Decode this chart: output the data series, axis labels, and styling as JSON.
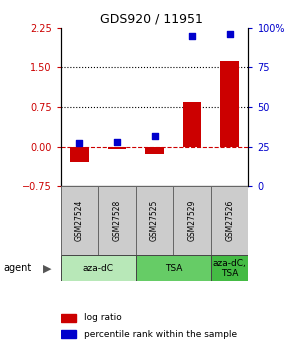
{
  "title": "GDS920 / 11951",
  "samples": [
    "GSM27524",
    "GSM27528",
    "GSM27525",
    "GSM27529",
    "GSM27526"
  ],
  "log_ratios": [
    -0.3,
    -0.05,
    -0.13,
    0.85,
    1.62
  ],
  "percentile_ranks": [
    27,
    28,
    32,
    95,
    96
  ],
  "ylim_left": [
    -0.75,
    2.25
  ],
  "ylim_right": [
    0,
    100
  ],
  "yticks_left": [
    -0.75,
    0,
    0.75,
    1.5,
    2.25
  ],
  "yticks_right": [
    0,
    25,
    50,
    75,
    100
  ],
  "bar_color": "#CC0000",
  "dot_color": "#0000CC",
  "bar_width": 0.5,
  "dot_size": 25,
  "cell_bg": "#cccccc",
  "agent_groups": [
    {
      "label": "aza-dC",
      "start": 0,
      "end": 2,
      "color": "#b8e8b8"
    },
    {
      "label": "TSA",
      "start": 2,
      "end": 4,
      "color": "#66cc66"
    },
    {
      "label": "aza-dC,\nTSA",
      "start": 4,
      "end": 5,
      "color": "#44bb44"
    }
  ],
  "title_fontsize": 9,
  "tick_fontsize": 7,
  "label_fontsize": 5.5,
  "agent_fontsize": 6.5,
  "legend_fontsize": 6.5
}
